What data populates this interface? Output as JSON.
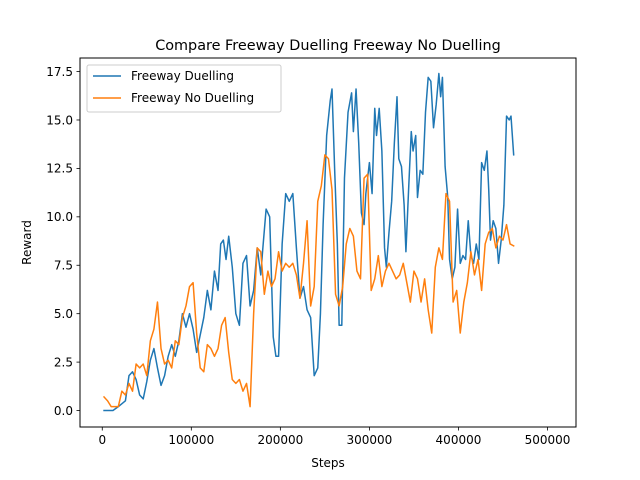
{
  "chart_data": {
    "type": "line",
    "title": "Compare Freeway Duelling Freeway No Duelling",
    "xlabel": "Steps",
    "ylabel": "Reward",
    "xlim": [
      -25000,
      532000
    ],
    "ylim": [
      -0.85,
      18.2
    ],
    "xticks": [
      0,
      100000,
      200000,
      300000,
      400000,
      500000
    ],
    "xtick_labels": [
      "0",
      "100000",
      "200000",
      "300000",
      "400000",
      "500000"
    ],
    "yticks": [
      0.0,
      2.5,
      5.0,
      7.5,
      10.0,
      12.5,
      15.0,
      17.5
    ],
    "ytick_labels": [
      "0.0",
      "2.5",
      "5.0",
      "7.5",
      "10.0",
      "12.5",
      "15.0",
      "17.5"
    ],
    "grid": false,
    "legend_position": "top-left",
    "series": [
      {
        "name": "Freeway Duelling",
        "color": "#1f77b4",
        "points": [
          [
            2000,
            0.0
          ],
          [
            12000,
            0.0
          ],
          [
            18000,
            0.2
          ],
          [
            26000,
            0.5
          ],
          [
            30000,
            1.8
          ],
          [
            34000,
            2.0
          ],
          [
            38000,
            1.6
          ],
          [
            42000,
            0.8
          ],
          [
            46000,
            0.6
          ],
          [
            50000,
            1.5
          ],
          [
            54000,
            2.6
          ],
          [
            58000,
            3.2
          ],
          [
            62000,
            2.2
          ],
          [
            66000,
            1.3
          ],
          [
            70000,
            1.8
          ],
          [
            74000,
            2.8
          ],
          [
            78000,
            3.4
          ],
          [
            82000,
            2.8
          ],
          [
            86000,
            3.6
          ],
          [
            90000,
            5.0
          ],
          [
            94000,
            4.3
          ],
          [
            98000,
            5.0
          ],
          [
            102000,
            4.2
          ],
          [
            106000,
            3.0
          ],
          [
            110000,
            3.9
          ],
          [
            114000,
            4.8
          ],
          [
            118000,
            6.2
          ],
          [
            122000,
            5.2
          ],
          [
            126000,
            7.2
          ],
          [
            130000,
            6.2
          ],
          [
            133000,
            8.6
          ],
          [
            136000,
            8.8
          ],
          [
            139000,
            7.8
          ],
          [
            142000,
            9.0
          ],
          [
            146000,
            7.4
          ],
          [
            150000,
            5.0
          ],
          [
            154000,
            4.4
          ],
          [
            158000,
            7.6
          ],
          [
            162000,
            8.0
          ],
          [
            166000,
            5.4
          ],
          [
            170000,
            6.2
          ],
          [
            174000,
            8.4
          ],
          [
            178000,
            7.0
          ],
          [
            180000,
            8.2
          ],
          [
            184000,
            10.4
          ],
          [
            188000,
            10.0
          ],
          [
            192000,
            3.8
          ],
          [
            195000,
            2.8
          ],
          [
            198000,
            2.8
          ],
          [
            202000,
            8.6
          ],
          [
            206000,
            11.2
          ],
          [
            210000,
            10.8
          ],
          [
            214000,
            11.2
          ],
          [
            218000,
            8.4
          ],
          [
            222000,
            5.8
          ],
          [
            226000,
            6.4
          ],
          [
            230000,
            5.2
          ],
          [
            234000,
            4.8
          ],
          [
            238000,
            1.8
          ],
          [
            242000,
            2.2
          ],
          [
            245000,
            5.0
          ],
          [
            248000,
            9.6
          ],
          [
            252000,
            14.2
          ],
          [
            256000,
            16.0
          ],
          [
            258000,
            16.6
          ],
          [
            261000,
            12.4
          ],
          [
            264000,
            8.6
          ],
          [
            266000,
            4.4
          ],
          [
            269000,
            4.4
          ],
          [
            272000,
            12.0
          ],
          [
            276000,
            15.4
          ],
          [
            280000,
            16.4
          ],
          [
            282000,
            14.4
          ],
          [
            285000,
            16.6
          ],
          [
            288000,
            13.8
          ],
          [
            291000,
            10.2
          ],
          [
            294000,
            9.6
          ],
          [
            296000,
            11.2
          ],
          [
            300000,
            12.8
          ],
          [
            303000,
            11.2
          ],
          [
            306000,
            15.6
          ],
          [
            308000,
            14.2
          ],
          [
            311000,
            15.6
          ],
          [
            314000,
            13.4
          ],
          [
            317000,
            8.4
          ],
          [
            319000,
            7.4
          ],
          [
            322000,
            9.2
          ],
          [
            325000,
            10.8
          ],
          [
            328000,
            13.8
          ],
          [
            331000,
            16.2
          ],
          [
            333000,
            13.0
          ],
          [
            336000,
            12.6
          ],
          [
            339000,
            10.6
          ],
          [
            341000,
            8.2
          ],
          [
            344000,
            11.4
          ],
          [
            347000,
            14.4
          ],
          [
            349000,
            13.4
          ],
          [
            352000,
            14.2
          ],
          [
            354000,
            11.0
          ],
          [
            357000,
            12.4
          ],
          [
            360000,
            12.2
          ],
          [
            363000,
            15.4
          ],
          [
            366000,
            17.2
          ],
          [
            369000,
            17.0
          ],
          [
            372000,
            14.6
          ],
          [
            375000,
            15.8
          ],
          [
            378000,
            17.4
          ],
          [
            380000,
            16.2
          ],
          [
            382000,
            17.2
          ],
          [
            385000,
            12.6
          ],
          [
            388000,
            11.0
          ],
          [
            390000,
            7.8
          ],
          [
            393000,
            6.8
          ],
          [
            396000,
            7.4
          ],
          [
            399000,
            10.4
          ],
          [
            402000,
            7.6
          ],
          [
            405000,
            8.0
          ],
          [
            408000,
            7.8
          ],
          [
            411000,
            9.8
          ],
          [
            414000,
            8.0
          ],
          [
            417000,
            7.6
          ],
          [
            420000,
            8.6
          ],
          [
            423000,
            7.8
          ],
          [
            426000,
            12.8
          ],
          [
            429000,
            12.4
          ],
          [
            432000,
            13.4
          ],
          [
            434000,
            11.4
          ],
          [
            436000,
            8.8
          ],
          [
            439000,
            9.8
          ],
          [
            442000,
            9.4
          ],
          [
            445000,
            7.6
          ],
          [
            448000,
            8.8
          ],
          [
            451000,
            10.6
          ],
          [
            454000,
            15.2
          ],
          [
            457000,
            15.0
          ],
          [
            459000,
            15.2
          ],
          [
            462000,
            13.2
          ]
        ]
      },
      {
        "name": "Freeway No Duelling",
        "color": "#ff7f0e",
        "points": [
          [
            2000,
            0.7
          ],
          [
            6000,
            0.5
          ],
          [
            10000,
            0.2
          ],
          [
            14000,
            0.2
          ],
          [
            18000,
            0.2
          ],
          [
            22000,
            1.0
          ],
          [
            26000,
            0.8
          ],
          [
            30000,
            1.4
          ],
          [
            34000,
            1.0
          ],
          [
            38000,
            2.4
          ],
          [
            42000,
            2.2
          ],
          [
            46000,
            2.4
          ],
          [
            50000,
            1.8
          ],
          [
            54000,
            3.6
          ],
          [
            58000,
            4.2
          ],
          [
            62000,
            5.6
          ],
          [
            66000,
            3.2
          ],
          [
            70000,
            2.4
          ],
          [
            74000,
            2.6
          ],
          [
            78000,
            2.2
          ],
          [
            82000,
            3.6
          ],
          [
            86000,
            3.4
          ],
          [
            90000,
            4.8
          ],
          [
            94000,
            5.4
          ],
          [
            98000,
            6.4
          ],
          [
            102000,
            6.6
          ],
          [
            106000,
            4.0
          ],
          [
            110000,
            2.2
          ],
          [
            114000,
            2.0
          ],
          [
            118000,
            3.4
          ],
          [
            122000,
            3.2
          ],
          [
            126000,
            2.8
          ],
          [
            130000,
            3.2
          ],
          [
            134000,
            4.4
          ],
          [
            138000,
            4.8
          ],
          [
            142000,
            3.0
          ],
          [
            146000,
            1.6
          ],
          [
            150000,
            1.4
          ],
          [
            154000,
            1.6
          ],
          [
            158000,
            1.0
          ],
          [
            162000,
            1.4
          ],
          [
            166000,
            0.2
          ],
          [
            170000,
            5.0
          ],
          [
            174000,
            8.4
          ],
          [
            178000,
            8.2
          ],
          [
            182000,
            6.0
          ],
          [
            186000,
            7.2
          ],
          [
            190000,
            6.4
          ],
          [
            194000,
            6.8
          ],
          [
            198000,
            8.2
          ],
          [
            202000,
            7.2
          ],
          [
            206000,
            7.6
          ],
          [
            210000,
            7.4
          ],
          [
            214000,
            7.6
          ],
          [
            218000,
            7.0
          ],
          [
            222000,
            5.8
          ],
          [
            226000,
            7.6
          ],
          [
            230000,
            9.8
          ],
          [
            234000,
            5.4
          ],
          [
            238000,
            6.4
          ],
          [
            242000,
            10.8
          ],
          [
            246000,
            11.6
          ],
          [
            250000,
            13.2
          ],
          [
            254000,
            13.0
          ],
          [
            258000,
            11.4
          ],
          [
            262000,
            6.0
          ],
          [
            266000,
            5.4
          ],
          [
            270000,
            6.4
          ],
          [
            274000,
            8.6
          ],
          [
            278000,
            9.4
          ],
          [
            282000,
            9.0
          ],
          [
            286000,
            7.2
          ],
          [
            290000,
            6.8
          ],
          [
            294000,
            12.0
          ],
          [
            298000,
            12.2
          ],
          [
            302000,
            6.2
          ],
          [
            306000,
            6.8
          ],
          [
            310000,
            8.0
          ],
          [
            314000,
            6.4
          ],
          [
            318000,
            7.2
          ],
          [
            322000,
            7.6
          ],
          [
            326000,
            7.2
          ],
          [
            330000,
            6.8
          ],
          [
            334000,
            7.0
          ],
          [
            338000,
            7.6
          ],
          [
            342000,
            6.6
          ],
          [
            346000,
            5.6
          ],
          [
            350000,
            7.2
          ],
          [
            354000,
            6.8
          ],
          [
            358000,
            5.6
          ],
          [
            362000,
            6.8
          ],
          [
            366000,
            5.2
          ],
          [
            370000,
            4.0
          ],
          [
            374000,
            7.4
          ],
          [
            378000,
            8.4
          ],
          [
            382000,
            7.8
          ],
          [
            386000,
            11.2
          ],
          [
            390000,
            10.8
          ],
          [
            394000,
            5.6
          ],
          [
            398000,
            6.2
          ],
          [
            402000,
            4.0
          ],
          [
            406000,
            5.6
          ],
          [
            410000,
            6.6
          ],
          [
            414000,
            8.2
          ],
          [
            418000,
            7.0
          ],
          [
            422000,
            7.8
          ],
          [
            426000,
            6.2
          ],
          [
            430000,
            8.6
          ],
          [
            434000,
            9.2
          ],
          [
            438000,
            9.4
          ],
          [
            442000,
            8.4
          ],
          [
            446000,
            9.0
          ],
          [
            450000,
            8.8
          ],
          [
            454000,
            9.6
          ],
          [
            458000,
            8.6
          ],
          [
            462000,
            8.5
          ]
        ]
      }
    ]
  }
}
